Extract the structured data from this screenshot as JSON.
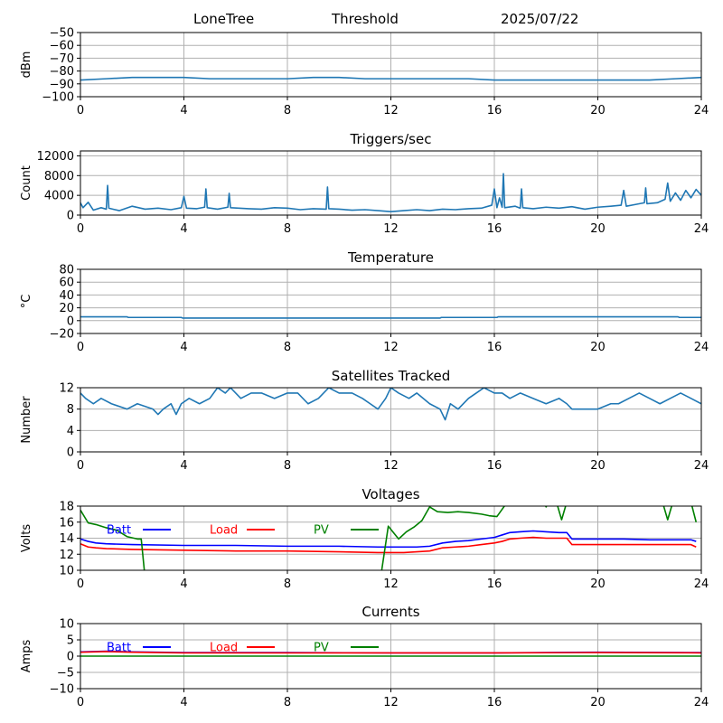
{
  "header": {
    "station": "LoneTree",
    "mode": "Threshold",
    "date": "2025/07/22"
  },
  "colors": {
    "series_default": "#1f77b4",
    "batt": "#0000ff",
    "load": "#ff0000",
    "pv": "#008000",
    "grid": "#b0b0b0",
    "axis": "#000000"
  },
  "chart_data": [
    {
      "type": "line",
      "title": "",
      "xlabel": "",
      "ylabel": "dBm",
      "xlim": [
        0,
        24
      ],
      "ylim": [
        -100,
        -50
      ],
      "xticks": [
        0,
        4,
        8,
        12,
        16,
        20,
        24
      ],
      "yticks": [
        -100,
        -90,
        -80,
        -70,
        -60,
        -50
      ],
      "grid": true,
      "legend": "none",
      "series": [
        {
          "color": "#1f77b4",
          "x": [
            0,
            1,
            2,
            3,
            4,
            5,
            6,
            7,
            8,
            9,
            10,
            11,
            12,
            13,
            14,
            15,
            16,
            17,
            18,
            19,
            20,
            21,
            22,
            23,
            24
          ],
          "y": [
            -87,
            -86,
            -85,
            -85,
            -85,
            -86,
            -86,
            -86,
            -86,
            -85,
            -85,
            -86,
            -86,
            -86,
            -86,
            -86,
            -87,
            -87,
            -87,
            -87,
            -87,
            -87,
            -87,
            -86,
            -85
          ]
        }
      ]
    },
    {
      "type": "line",
      "title": "Triggers/sec",
      "xlabel": "",
      "ylabel": "Count",
      "xlim": [
        0,
        24
      ],
      "ylim": [
        0,
        13000
      ],
      "xticks": [
        0,
        4,
        8,
        12,
        16,
        20,
        24
      ],
      "yticks": [
        0,
        4000,
        8000,
        12000
      ],
      "grid": true,
      "legend": "none",
      "series": [
        {
          "color": "#1f77b4",
          "x": [
            0,
            0.1,
            0.3,
            0.5,
            0.8,
            1.0,
            1.05,
            1.1,
            1.5,
            2.0,
            2.5,
            3.0,
            3.5,
            3.9,
            4.0,
            4.1,
            4.5,
            4.8,
            4.85,
            4.9,
            5.3,
            5.7,
            5.75,
            5.8,
            6.5,
            7.0,
            7.5,
            8.0,
            8.5,
            9.0,
            9.5,
            9.55,
            9.6,
            10.0,
            10.5,
            11.0,
            11.5,
            12.0,
            12.5,
            13.0,
            13.5,
            14.0,
            14.5,
            15.0,
            15.5,
            15.9,
            16.0,
            16.1,
            16.2,
            16.3,
            16.35,
            16.4,
            16.8,
            17.0,
            17.05,
            17.1,
            17.5,
            18.0,
            18.5,
            19.0,
            19.5,
            20.0,
            20.5,
            20.9,
            21.0,
            21.1,
            21.5,
            21.8,
            21.85,
            21.9,
            22.3,
            22.6,
            22.7,
            22.8,
            23.0,
            23.2,
            23.4,
            23.6,
            23.8,
            24.0
          ],
          "y": [
            2500,
            1500,
            2600,
            1000,
            1500,
            1200,
            6000,
            1400,
            900,
            1800,
            1200,
            1400,
            1100,
            1500,
            3800,
            1400,
            1300,
            1600,
            5300,
            1500,
            1200,
            1600,
            4400,
            1500,
            1300,
            1200,
            1500,
            1400,
            1100,
            1300,
            1200,
            5700,
            1300,
            1200,
            1000,
            1100,
            900,
            700,
            900,
            1100,
            900,
            1200,
            1100,
            1300,
            1400,
            2000,
            5300,
            1500,
            3500,
            1600,
            8400,
            1500,
            1800,
            1400,
            5300,
            1500,
            1300,
            1600,
            1400,
            1700,
            1200,
            1600,
            1800,
            2000,
            5000,
            1800,
            2200,
            2500,
            5500,
            2300,
            2500,
            3200,
            6500,
            2800,
            4500,
            3000,
            5000,
            3500,
            5200,
            4000
          ]
        }
      ]
    },
    {
      "type": "line",
      "title": "Temperature",
      "xlabel": "",
      "ylabel": "°C",
      "xlim": [
        0,
        24
      ],
      "ylim": [
        -20,
        80
      ],
      "xticks": [
        0,
        4,
        8,
        12,
        16,
        20,
        24
      ],
      "yticks": [
        -20,
        0,
        20,
        40,
        60,
        80
      ],
      "grid": true,
      "legend": "none",
      "series": [
        {
          "color": "#1f77b4",
          "x": [
            0,
            1.8,
            1.85,
            3.9,
            3.95,
            13.9,
            13.95,
            16.1,
            16.15,
            23.1,
            23.15,
            24
          ],
          "y": [
            6,
            6,
            5,
            5,
            4,
            4,
            5,
            5,
            6,
            6,
            5,
            5
          ]
        }
      ]
    },
    {
      "type": "line",
      "title": "Satellites Tracked",
      "xlabel": "",
      "ylabel": "Number",
      "xlim": [
        0,
        24
      ],
      "ylim": [
        0,
        12
      ],
      "xticks": [
        0,
        4,
        8,
        12,
        16,
        20,
        24
      ],
      "yticks": [
        0,
        4,
        8,
        12
      ],
      "grid": true,
      "legend": "none",
      "series": [
        {
          "color": "#1f77b4",
          "x": [
            0,
            0.2,
            0.5,
            0.8,
            1.2,
            1.8,
            2.2,
            2.8,
            3.0,
            3.2,
            3.5,
            3.7,
            3.9,
            4.2,
            4.6,
            5.0,
            5.3,
            5.6,
            5.8,
            6.2,
            6.6,
            7.0,
            7.5,
            8.0,
            8.4,
            8.8,
            9.2,
            9.6,
            10.0,
            10.5,
            10.9,
            11.2,
            11.5,
            11.8,
            12.0,
            12.3,
            12.7,
            13.0,
            13.5,
            13.9,
            14.1,
            14.3,
            14.6,
            15.0,
            15.3,
            15.6,
            16.0,
            16.3,
            16.6,
            17.0,
            17.5,
            18.0,
            18.5,
            18.8,
            19.0,
            19.5,
            20.0,
            20.5,
            20.8,
            21.2,
            21.6,
            22.0,
            22.4,
            22.8,
            23.2,
            23.6,
            24.0
          ],
          "y": [
            11,
            10,
            9,
            10,
            9,
            8,
            9,
            8,
            7,
            8,
            9,
            7,
            9,
            10,
            9,
            10,
            12,
            11,
            12,
            10,
            11,
            11,
            10,
            11,
            11,
            9,
            10,
            12,
            11,
            11,
            10,
            9,
            8,
            10,
            12,
            11,
            10,
            11,
            9,
            8,
            6,
            9,
            8,
            10,
            11,
            12,
            11,
            11,
            10,
            11,
            10,
            9,
            10,
            9,
            8,
            8,
            8,
            9,
            9,
            10,
            11,
            10,
            9,
            10,
            11,
            10,
            9
          ]
        }
      ]
    },
    {
      "type": "line",
      "title": "Voltages",
      "xlabel": "",
      "ylabel": "Volts",
      "xlim": [
        0,
        24
      ],
      "ylim": [
        10,
        18
      ],
      "xticks": [
        0,
        4,
        8,
        12,
        16,
        20,
        24
      ],
      "yticks": [
        10,
        12,
        14,
        16,
        18
      ],
      "grid": true,
      "legend": "upper-left (horizontal)",
      "series": [
        {
          "name": "Batt",
          "color": "#0000ff",
          "x": [
            0,
            0.3,
            0.6,
            1.0,
            2.0,
            4.0,
            6.0,
            8.0,
            10.0,
            11.5,
            12.5,
            13.0,
            13.5,
            14.0,
            14.5,
            15.0,
            15.5,
            16.0,
            16.3,
            16.6,
            17.0,
            17.5,
            18.0,
            18.5,
            18.8,
            19.0,
            20.0,
            21.0,
            22.0,
            23.0,
            23.6,
            23.8
          ],
          "y": [
            13.9,
            13.6,
            13.4,
            13.3,
            13.2,
            13.1,
            13.1,
            13.0,
            13.0,
            12.9,
            12.9,
            12.9,
            13.0,
            13.4,
            13.6,
            13.7,
            13.9,
            14.1,
            14.4,
            14.7,
            14.8,
            14.9,
            14.8,
            14.7,
            14.7,
            13.9,
            13.9,
            13.9,
            13.8,
            13.8,
            13.8,
            13.6
          ]
        },
        {
          "name": "Load",
          "color": "#ff0000",
          "x": [
            0,
            0.3,
            0.6,
            1.0,
            2.0,
            4.0,
            6.0,
            8.0,
            10.0,
            11.5,
            12.5,
            13.0,
            13.5,
            14.0,
            14.5,
            15.0,
            15.5,
            16.0,
            16.3,
            16.6,
            17.0,
            17.5,
            18.0,
            18.5,
            18.8,
            19.0,
            20.0,
            21.0,
            22.0,
            23.0,
            23.6,
            23.8
          ],
          "y": [
            13.3,
            12.9,
            12.8,
            12.7,
            12.6,
            12.5,
            12.4,
            12.4,
            12.3,
            12.2,
            12.2,
            12.3,
            12.4,
            12.8,
            12.9,
            13.0,
            13.2,
            13.4,
            13.6,
            13.9,
            14.0,
            14.1,
            14.0,
            14.0,
            14.0,
            13.2,
            13.2,
            13.2,
            13.2,
            13.2,
            13.2,
            12.9
          ]
        },
        {
          "name": "PV",
          "color": "#008000",
          "x": [
            0,
            0.3,
            0.6,
            1.0,
            1.4,
            1.8,
            2.2,
            2.35,
            2.5,
            11.6,
            11.9,
            12.3,
            12.6,
            12.9,
            13.2,
            13.5,
            13.8,
            14.2,
            14.6,
            15.0,
            15.5,
            15.8,
            16.1,
            16.3,
            16.5,
            17.9,
            18.0,
            18.1,
            18.4,
            18.6,
            18.8,
            22.5,
            22.7,
            22.9,
            23.6,
            23.8
          ],
          "y": [
            17.5,
            15.9,
            15.7,
            15.3,
            15.0,
            14.2,
            13.9,
            13.9,
            9.0,
            9.0,
            15.5,
            13.9,
            14.8,
            15.4,
            16.2,
            17.9,
            17.3,
            17.2,
            17.3,
            17.2,
            17.0,
            16.8,
            16.7,
            17.6,
            18.5,
            18.5,
            17.9,
            18.5,
            18.5,
            16.3,
            18.5,
            18.5,
            16.3,
            18.5,
            18.5,
            16.0
          ]
        }
      ]
    },
    {
      "type": "line",
      "title": "Currents",
      "xlabel": "",
      "ylabel": "Amps",
      "xlim": [
        0,
        24
      ],
      "ylim": [
        -10,
        10
      ],
      "xticks": [
        0,
        4,
        8,
        12,
        16,
        20,
        24
      ],
      "yticks": [
        -10,
        -5,
        0,
        5,
        10
      ],
      "grid": true,
      "legend": "upper-left (horizontal)",
      "series": [
        {
          "name": "Batt",
          "color": "#0000ff",
          "x": [
            0,
            1.0,
            2.0,
            4.0,
            8.0,
            12.0,
            16.0,
            20.0,
            24.0
          ],
          "y": [
            1.3,
            1.5,
            1.3,
            1.1,
            1.1,
            1.0,
            1.0,
            1.2,
            1.1
          ]
        },
        {
          "name": "Load",
          "color": "#ff0000",
          "x": [
            0,
            1.0,
            2.0,
            4.0,
            8.0,
            12.0,
            16.0,
            20.0,
            24.0
          ],
          "y": [
            1.2,
            1.4,
            1.2,
            1.0,
            1.0,
            1.0,
            1.0,
            1.1,
            1.0
          ]
        },
        {
          "name": "PV",
          "color": "#008000",
          "x": [
            0,
            4.0,
            8.0,
            12.0,
            16.0,
            20.0,
            24.0
          ],
          "y": [
            0,
            0,
            0,
            0,
            0,
            0,
            0
          ]
        }
      ]
    }
  ]
}
